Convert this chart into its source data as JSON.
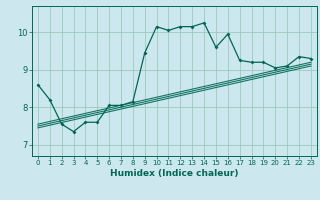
{
  "xlabel": "Humidex (Indice chaleur)",
  "ylabel": "",
  "bg_color": "#cce8ee",
  "grid_color": "#99ccbb",
  "line_color": "#006655",
  "xlim": [
    -0.5,
    23.5
  ],
  "ylim": [
    6.7,
    10.7
  ],
  "xticks": [
    0,
    1,
    2,
    3,
    4,
    5,
    6,
    7,
    8,
    9,
    10,
    11,
    12,
    13,
    14,
    15,
    16,
    17,
    18,
    19,
    20,
    21,
    22,
    23
  ],
  "yticks": [
    7,
    8,
    9,
    10
  ],
  "main_x": [
    0,
    1,
    2,
    3,
    4,
    5,
    6,
    7,
    8,
    9,
    10,
    11,
    12,
    13,
    14,
    15,
    16,
    17,
    18,
    19,
    20,
    21,
    22,
    23
  ],
  "main_y": [
    8.6,
    8.2,
    7.55,
    7.35,
    7.6,
    7.6,
    8.05,
    8.05,
    8.15,
    9.45,
    10.15,
    10.05,
    10.15,
    10.15,
    10.25,
    9.6,
    9.95,
    9.25,
    9.2,
    9.2,
    9.05,
    9.1,
    9.35,
    9.3
  ],
  "reg_lines": [
    {
      "x": [
        0,
        23
      ],
      "y": [
        7.45,
        9.1
      ]
    },
    {
      "x": [
        0,
        23
      ],
      "y": [
        7.5,
        9.15
      ]
    },
    {
      "x": [
        0,
        23
      ],
      "y": [
        7.55,
        9.2
      ]
    }
  ],
  "xlabel_fontsize": 6.5,
  "tick_fontsize": 5.0,
  "ytick_fontsize": 6.0
}
